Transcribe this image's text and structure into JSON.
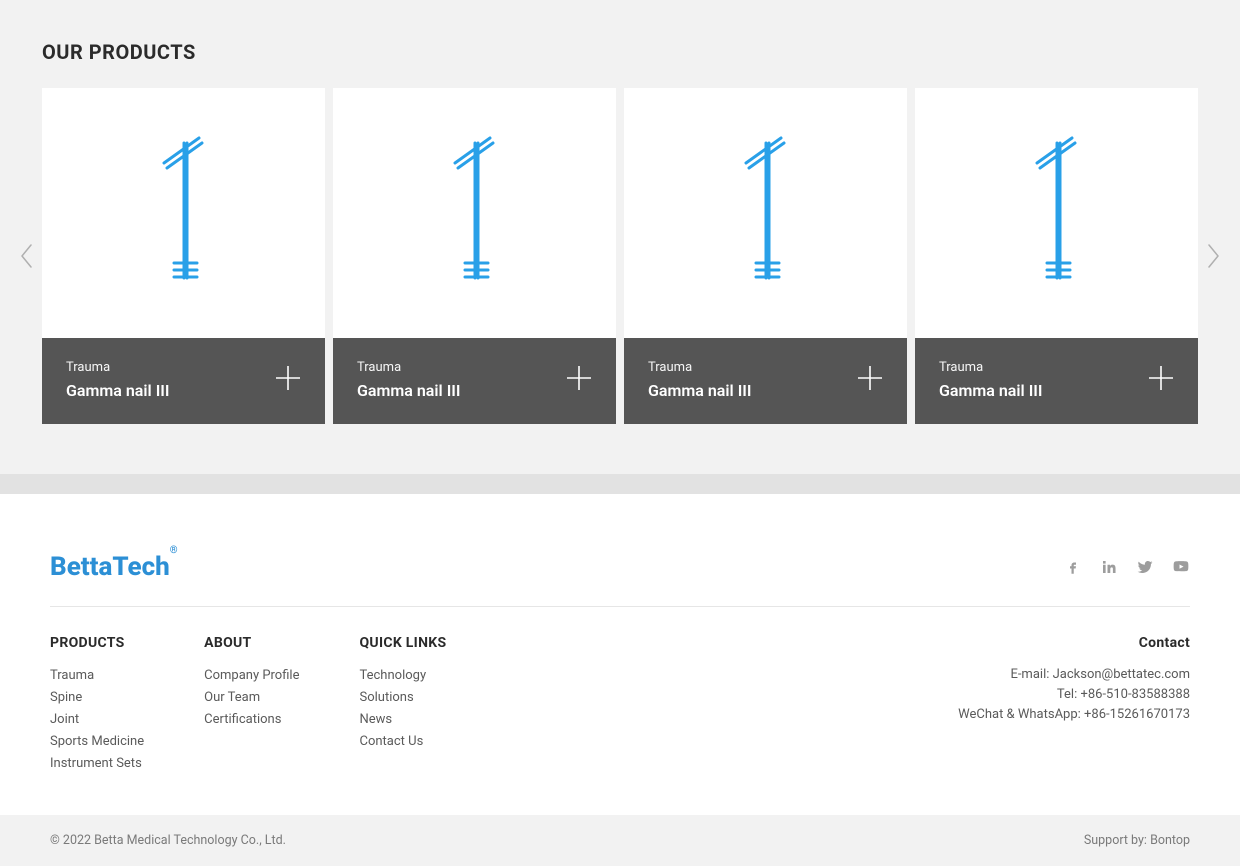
{
  "section_title": "OUR PRODUCTS",
  "svg_color": "#29a0e8",
  "cards": [
    {
      "category": "Trauma",
      "name": "Gamma nail III"
    },
    {
      "category": "Trauma",
      "name": "Gamma nail III"
    },
    {
      "category": "Trauma",
      "name": "Gamma nail III"
    },
    {
      "category": "Trauma",
      "name": "Gamma nail III"
    }
  ],
  "logo_main": "BettaTech",
  "logo_sup": "®",
  "footer_nav": {
    "products": {
      "heading": "PRODUCTS",
      "items": [
        "Trauma",
        "Spine",
        "Joint",
        "Sports Medicine",
        "Instrument Sets"
      ]
    },
    "about": {
      "heading": "ABOUT",
      "items": [
        "Company Profile",
        "Our Team",
        "Certifications"
      ]
    },
    "quick_links": {
      "heading": "QUICK LINKS",
      "items": [
        "Technology",
        "Solutions",
        "News",
        "Contact Us"
      ]
    }
  },
  "contact": {
    "heading": "Contact",
    "email_label": "E-mail: ",
    "email_value": "Jackson@bettatec.com",
    "tel_label": "Tel: ",
    "tel_value": "+86-510-83588388",
    "wechat_label": "WeChat & WhatsApp: ",
    "wechat_value": "+86-15261670173"
  },
  "copyright": "© 2022 Betta Medical Technology Co., Ltd.",
  "support_label": "Support by: ",
  "support_value": "Bontop",
  "colors": {
    "page_bg": "#f2f2f2",
    "card_footer_bg": "#555555",
    "logo_color": "#2c8fd5",
    "text_dark": "#2b2b2b",
    "text_muted": "#5a5a5a",
    "icon_grey": "#9d9d9d"
  }
}
